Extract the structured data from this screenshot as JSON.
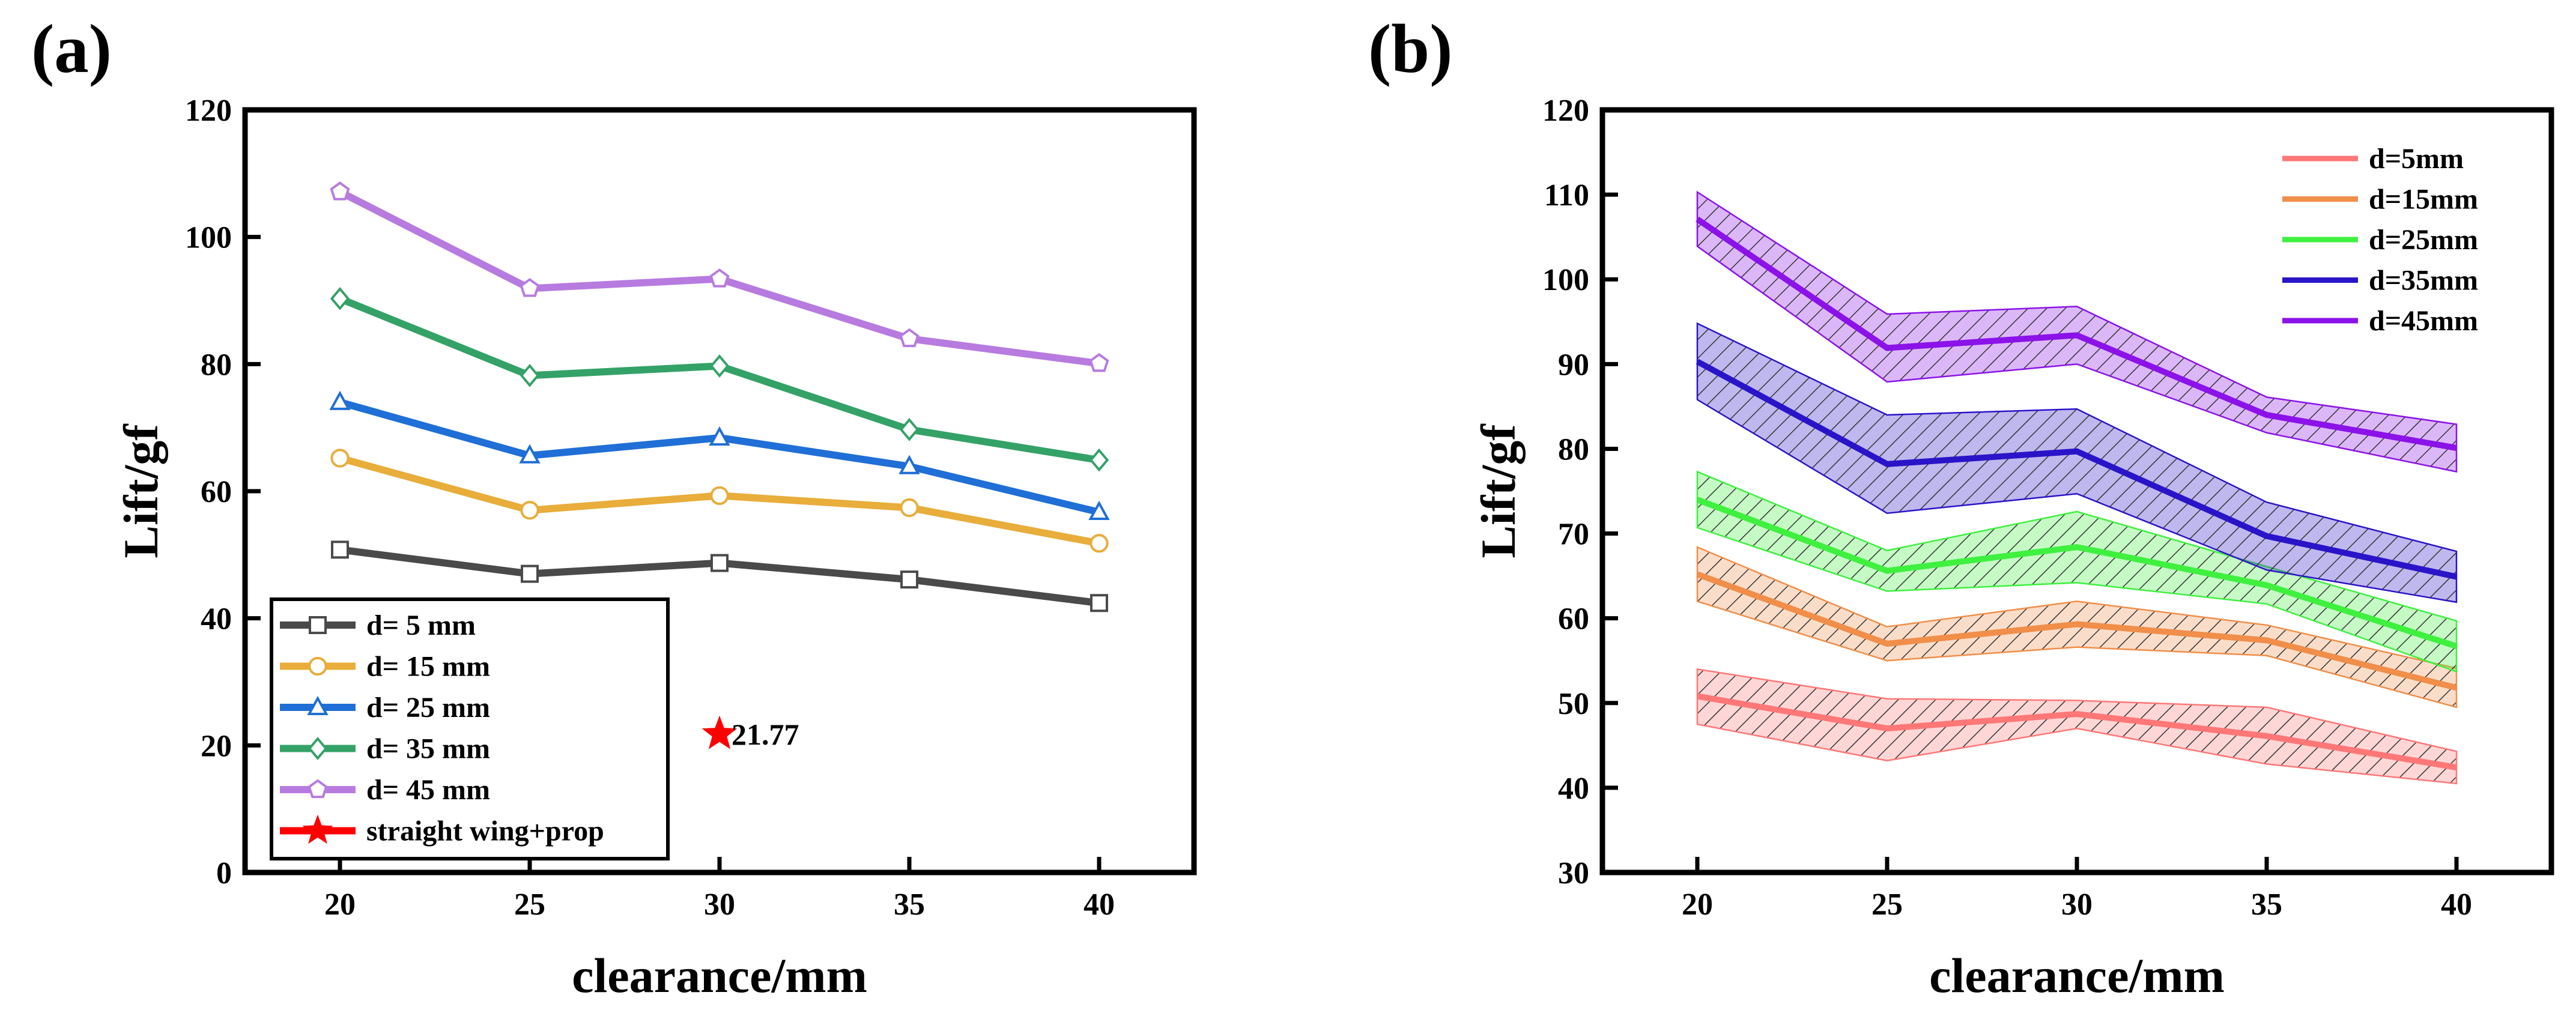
{
  "chart_data": [
    {
      "panel_label": "(a)",
      "type": "line",
      "xlabel": "clearance/mm",
      "ylabel": "Lift/gf",
      "x": [
        20,
        25,
        30,
        35,
        40
      ],
      "xlim": [
        17.5,
        42.5
      ],
      "ylim": [
        0,
        120
      ],
      "xticks": [
        20,
        25,
        30,
        35,
        40
      ],
      "yticks": [
        0,
        20,
        40,
        60,
        80,
        100,
        120
      ],
      "grid": false,
      "legend_position": "bottom-left",
      "series": [
        {
          "name": "d= 5 mm",
          "color": "#4a4a4a",
          "marker": "square",
          "values": [
            50.8,
            47.0,
            48.7,
            46.1,
            42.4
          ]
        },
        {
          "name": "d= 15 mm",
          "color": "#e8ad3a",
          "marker": "circle",
          "values": [
            65.2,
            57.0,
            59.3,
            57.4,
            51.8
          ]
        },
        {
          "name": "d= 25 mm",
          "color": "#1f6fd6",
          "marker": "triangle",
          "values": [
            74.0,
            65.6,
            68.4,
            63.9,
            56.7
          ]
        },
        {
          "name": "d= 35 mm",
          "color": "#34a267",
          "marker": "diamond",
          "values": [
            90.3,
            78.2,
            79.7,
            69.7,
            64.9
          ]
        },
        {
          "name": "d= 45 mm",
          "color": "#b77be0",
          "marker": "pentagon",
          "values": [
            107.1,
            91.9,
            93.4,
            84.0,
            80.1
          ]
        }
      ],
      "point_series": {
        "name": "straight wing+prop",
        "color": "#ff0000",
        "marker": "star",
        "x": 30,
        "y": 21.77
      },
      "annotation": "21.77"
    },
    {
      "panel_label": "(b)",
      "type": "line",
      "xlabel": "clearance/mm",
      "ylabel": "Lift/gf",
      "x": [
        20,
        25,
        30,
        35,
        40
      ],
      "xlim": [
        17.5,
        42.5
      ],
      "ylim": [
        30,
        120
      ],
      "xticks": [
        20,
        25,
        30,
        35,
        40
      ],
      "yticks": [
        30,
        40,
        50,
        60,
        70,
        80,
        90,
        100,
        110,
        120
      ],
      "grid": false,
      "legend_position": "top-right",
      "band_style": "hatched",
      "series": [
        {
          "name": "d=5mm",
          "color": "#ff7777",
          "values": [
            50.8,
            47.0,
            48.7,
            46.1,
            42.4
          ],
          "lower": [
            47.5,
            43.2,
            47.0,
            42.8,
            40.5
          ],
          "upper": [
            54.0,
            50.5,
            50.3,
            49.5,
            44.3
          ]
        },
        {
          "name": "d=15mm",
          "color": "#f08e4a",
          "values": [
            65.2,
            57.0,
            59.3,
            57.4,
            51.8
          ],
          "lower": [
            62.0,
            55.0,
            56.6,
            55.6,
            49.5
          ],
          "upper": [
            68.4,
            59.0,
            62.0,
            59.2,
            54.1
          ]
        },
        {
          "name": "d=25mm",
          "color": "#3ff03f",
          "values": [
            74.0,
            65.6,
            68.4,
            63.9,
            56.7
          ],
          "lower": [
            70.7,
            63.2,
            64.2,
            61.7,
            53.7
          ],
          "upper": [
            77.3,
            68.0,
            72.6,
            66.1,
            59.7
          ]
        },
        {
          "name": "d=35mm",
          "color": "#2a14c8",
          "values": [
            90.3,
            78.2,
            79.7,
            69.7,
            64.9
          ],
          "lower": [
            85.8,
            72.4,
            74.7,
            65.7,
            61.9
          ],
          "upper": [
            94.8,
            84.0,
            84.7,
            73.7,
            67.9
          ]
        },
        {
          "name": "d=45mm",
          "color": "#8b12e8",
          "values": [
            107.1,
            91.9,
            93.4,
            84.0,
            80.1
          ],
          "lower": [
            103.9,
            87.9,
            90.0,
            81.9,
            77.3
          ],
          "upper": [
            110.3,
            95.9,
            96.8,
            86.1,
            82.9
          ]
        }
      ]
    }
  ]
}
